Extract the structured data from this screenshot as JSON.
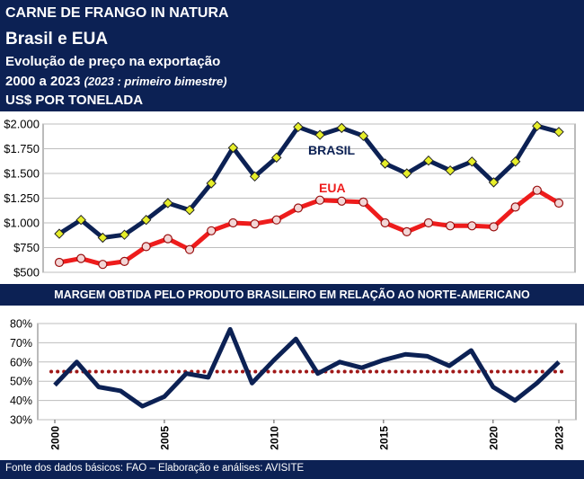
{
  "header": {
    "line1": "CARNE DE FRANGO IN NATURA",
    "line2": "Brasil e EUA",
    "line3": "Evolução de preço na exportação",
    "line4_main": "2000 a 2023",
    "line4_note": "(2023 : primeiro bimestre)",
    "line5": "US$ POR TONELADA"
  },
  "band_title": "MARGEM OBTIDA PELO PRODUTO BRASILEIRO EM RELAÇÃO AO NORTE-AMERICANO",
  "footer": "Fonte dos dados básicos: FAO – Elaboração e análises: AVISITE",
  "colors": {
    "navy": "#0c2154",
    "red": "#ee1c1c",
    "marker_yellow": "#e6ee2a",
    "dotted_red": "#a01818"
  },
  "chart_data": [
    {
      "type": "line",
      "x": [
        2000,
        2001,
        2002,
        2003,
        2004,
        2005,
        2006,
        2007,
        2008,
        2009,
        2010,
        2011,
        2012,
        2013,
        2014,
        2015,
        2016,
        2017,
        2018,
        2019,
        2020,
        2021,
        2022,
        2023
      ],
      "ylim": [
        500,
        2000
      ],
      "yticks": [
        "$500",
        "$750",
        "$1.000",
        "$1.250",
        "$1.500",
        "$1.750",
        "$2.000"
      ],
      "series": [
        {
          "name": "BRASIL",
          "values": [
            890,
            1030,
            850,
            880,
            1030,
            1200,
            1130,
            1400,
            1760,
            1470,
            1660,
            1970,
            1890,
            1960,
            1880,
            1600,
            1500,
            1630,
            1530,
            1620,
            1410,
            1620,
            1980,
            1920
          ]
        },
        {
          "name": "EUA",
          "values": [
            600,
            640,
            580,
            610,
            760,
            840,
            730,
            920,
            1000,
            990,
            1030,
            1150,
            1230,
            1220,
            1210,
            1000,
            910,
            1000,
            970,
            970,
            960,
            1160,
            1330,
            1200
          ]
        }
      ]
    },
    {
      "type": "line",
      "x": [
        2000,
        2001,
        2002,
        2003,
        2004,
        2005,
        2006,
        2007,
        2008,
        2009,
        2010,
        2011,
        2012,
        2013,
        2014,
        2015,
        2016,
        2017,
        2018,
        2019,
        2020,
        2021,
        2022,
        2023
      ],
      "ylim": [
        30,
        80
      ],
      "yticks": [
        "30%",
        "40%",
        "50%",
        "60%",
        "70%",
        "80%"
      ],
      "xticks": [
        "2000",
        "2005",
        "2010",
        "2015",
        "2020",
        "2023"
      ],
      "series": [
        {
          "values": [
            48,
            60,
            47,
            45,
            37,
            42,
            54,
            52,
            77,
            49,
            61,
            72,
            54,
            60,
            57,
            61,
            64,
            63,
            58,
            66,
            47,
            40,
            49,
            60
          ]
        }
      ],
      "reference_line": 55
    }
  ]
}
